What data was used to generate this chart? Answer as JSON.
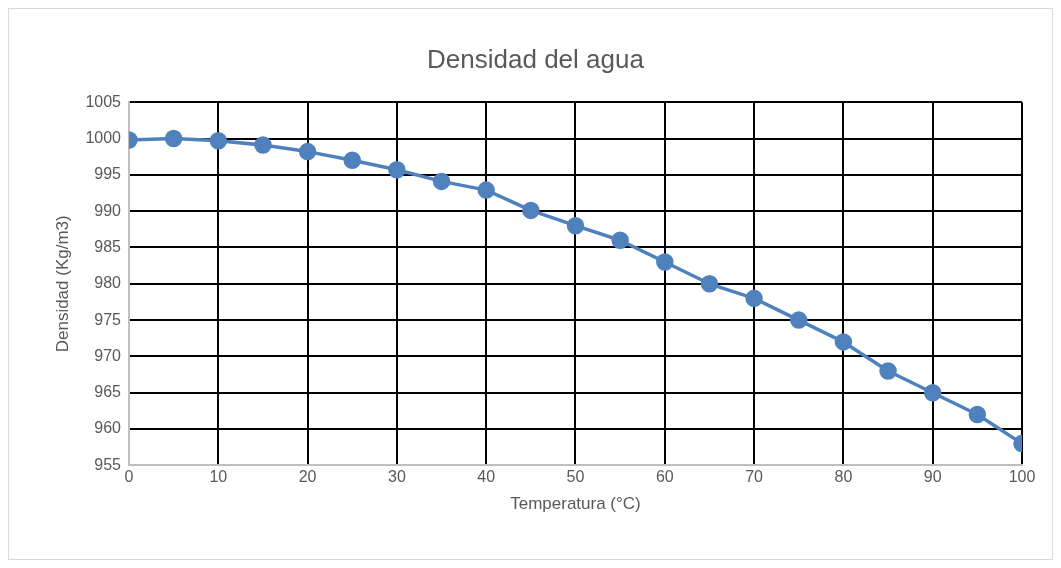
{
  "chart_data": {
    "type": "line",
    "title": "Densidad del agua",
    "xlabel": "Temperatura (°C)",
    "ylabel": "Densidad (Kg/m3)",
    "x": [
      0,
      5,
      10,
      15,
      20,
      25,
      30,
      35,
      40,
      45,
      50,
      55,
      60,
      65,
      70,
      75,
      80,
      85,
      90,
      95,
      100
    ],
    "series": [
      {
        "color": "#4f81bd",
        "values": [
          999.8,
          1000,
          999.7,
          999.1,
          998.2,
          997.0,
          995.7,
          994.1,
          992.9,
          990.1,
          988,
          986,
          983,
          980,
          978,
          975,
          972,
          968,
          965,
          962,
          958
        ]
      }
    ],
    "xlim": [
      0,
      100
    ],
    "xticks": [
      0,
      10,
      20,
      30,
      40,
      50,
      60,
      70,
      80,
      90,
      100
    ],
    "ylim": [
      955,
      1005
    ],
    "yticks": [
      955,
      960,
      965,
      970,
      975,
      980,
      985,
      990,
      995,
      1000,
      1005
    ],
    "grid": true,
    "marker": "circle",
    "line_style": "solid",
    "legend": false
  }
}
